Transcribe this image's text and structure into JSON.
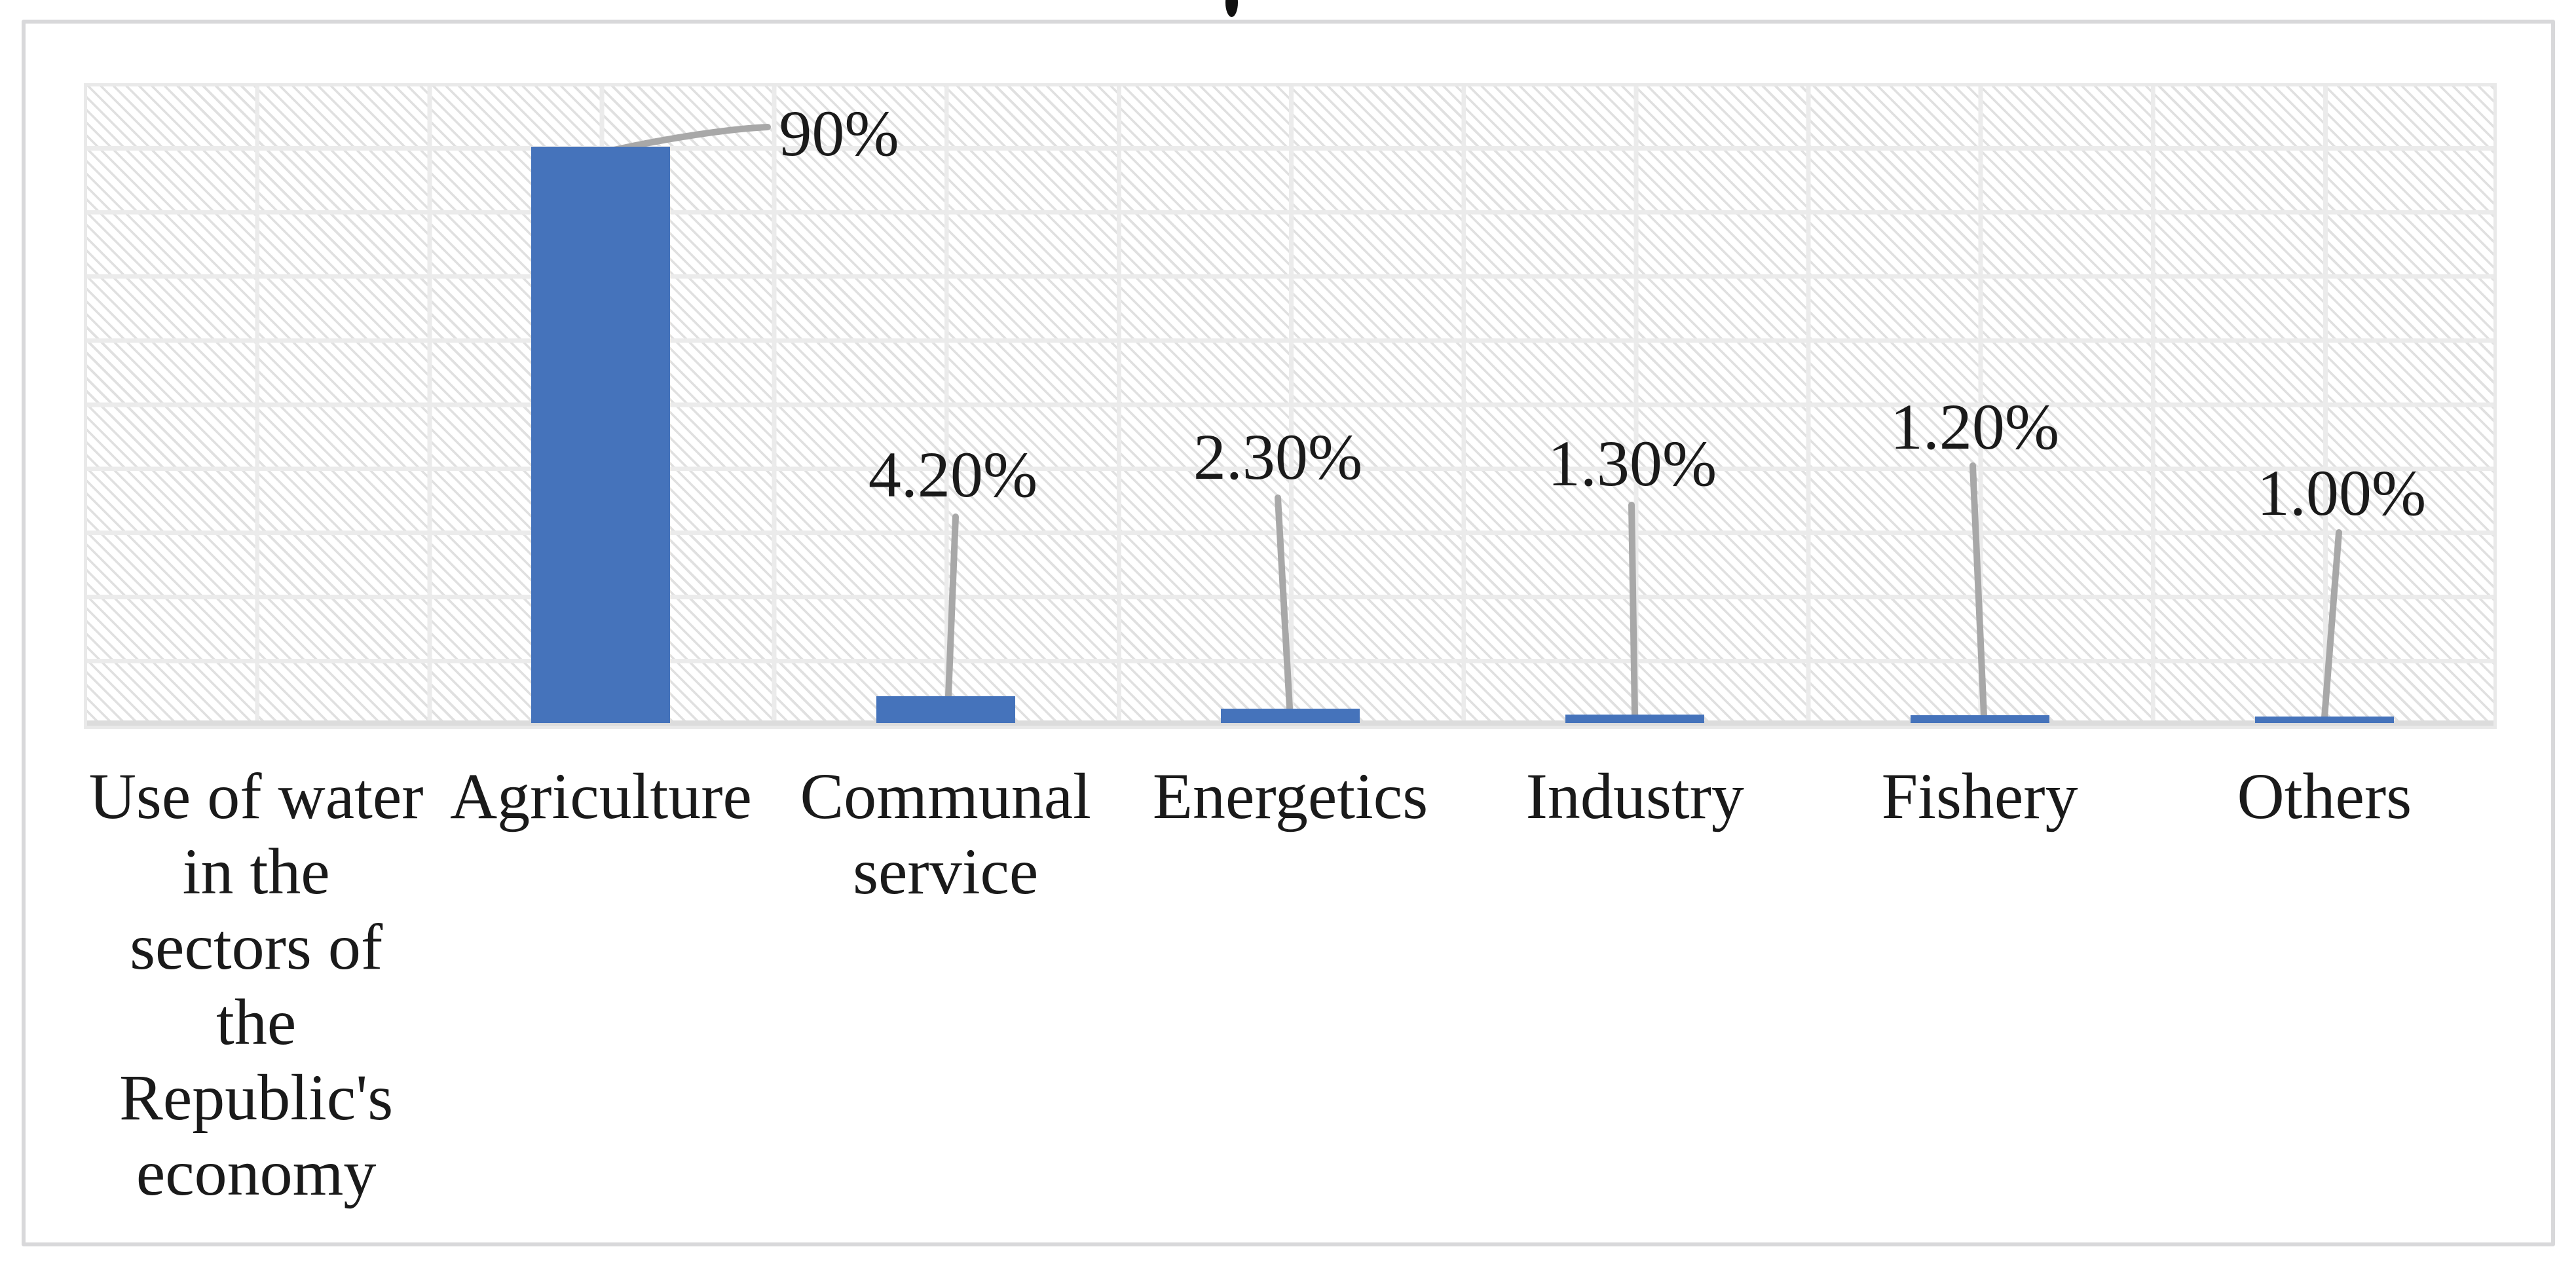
{
  "chart_data": {
    "type": "bar",
    "title": "",
    "xlabel": "",
    "ylabel": "",
    "categories": [
      "Use of water\nin the\nsectors of\nthe\nRepublic's\neconomy",
      "Agriculture",
      "Communal\nservice",
      "Energetics",
      "Industry",
      "Fishery",
      "Others"
    ],
    "values": [
      null,
      90,
      4.2,
      2.3,
      1.3,
      1.2,
      1.0
    ],
    "data_labels": [
      "",
      "90%",
      "4.20%",
      "2.30%",
      "1.30%",
      "1.20%",
      "1.00%"
    ],
    "ylim": [
      0,
      100
    ],
    "gridline_interval_pct": 10,
    "grid": true,
    "legend_position": "none",
    "plot_background": "diagonal-hatch",
    "colors": {
      "bar": "#4573BB",
      "leader_line": "#A8A8A8",
      "gridline": "#EBEBEB",
      "hatch_stripe": "#E0E0E0",
      "axis_line": "#DCDCDC",
      "border": "#D8D8DA",
      "text": "#1A1A1A",
      "background": "#FFFFFF"
    }
  }
}
